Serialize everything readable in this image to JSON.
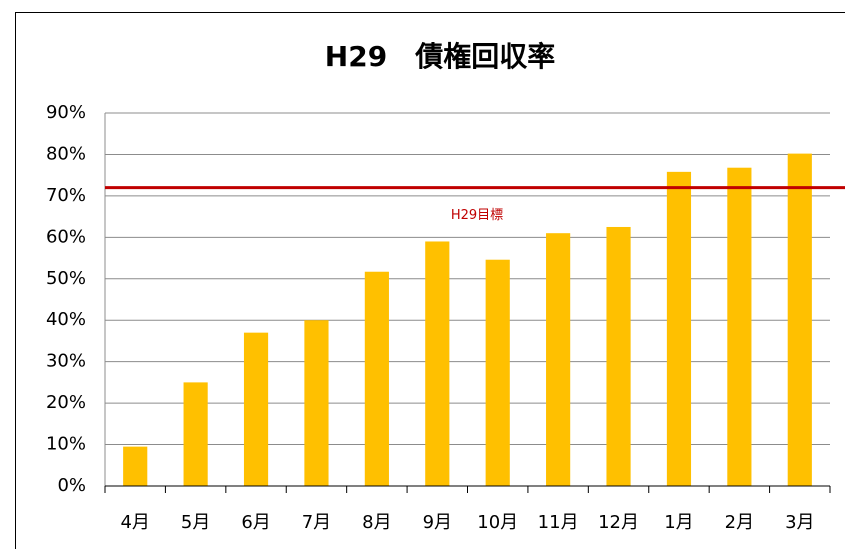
{
  "chart_data": {
    "type": "bar",
    "title": "H29　債権回収率",
    "categories": [
      "4月",
      "5月",
      "6月",
      "7月",
      "8月",
      "9月",
      "10月",
      "11月",
      "12月",
      "1月",
      "2月",
      "3月"
    ],
    "values": [
      9.5,
      25,
      37,
      40,
      51.7,
      59,
      54.6,
      61,
      62.5,
      75.8,
      76.8,
      80.2
    ],
    "color": "#ffc000",
    "ylim": [
      0,
      90
    ],
    "yticks": [
      {
        "value": 0,
        "label": "0%"
      },
      {
        "value": 10,
        "label": "10%"
      },
      {
        "value": 20,
        "label": "20%"
      },
      {
        "value": 30,
        "label": "30%"
      },
      {
        "value": 40,
        "label": "40%"
      },
      {
        "value": 50,
        "label": "50%"
      },
      {
        "value": 60,
        "label": "60%"
      },
      {
        "value": 70,
        "label": "70%"
      },
      {
        "value": 80,
        "label": "80%"
      },
      {
        "value": 90,
        "label": "90%"
      }
    ],
    "grid": true,
    "target": {
      "value": 72,
      "label": "H29目標",
      "color": "#c00000"
    }
  }
}
